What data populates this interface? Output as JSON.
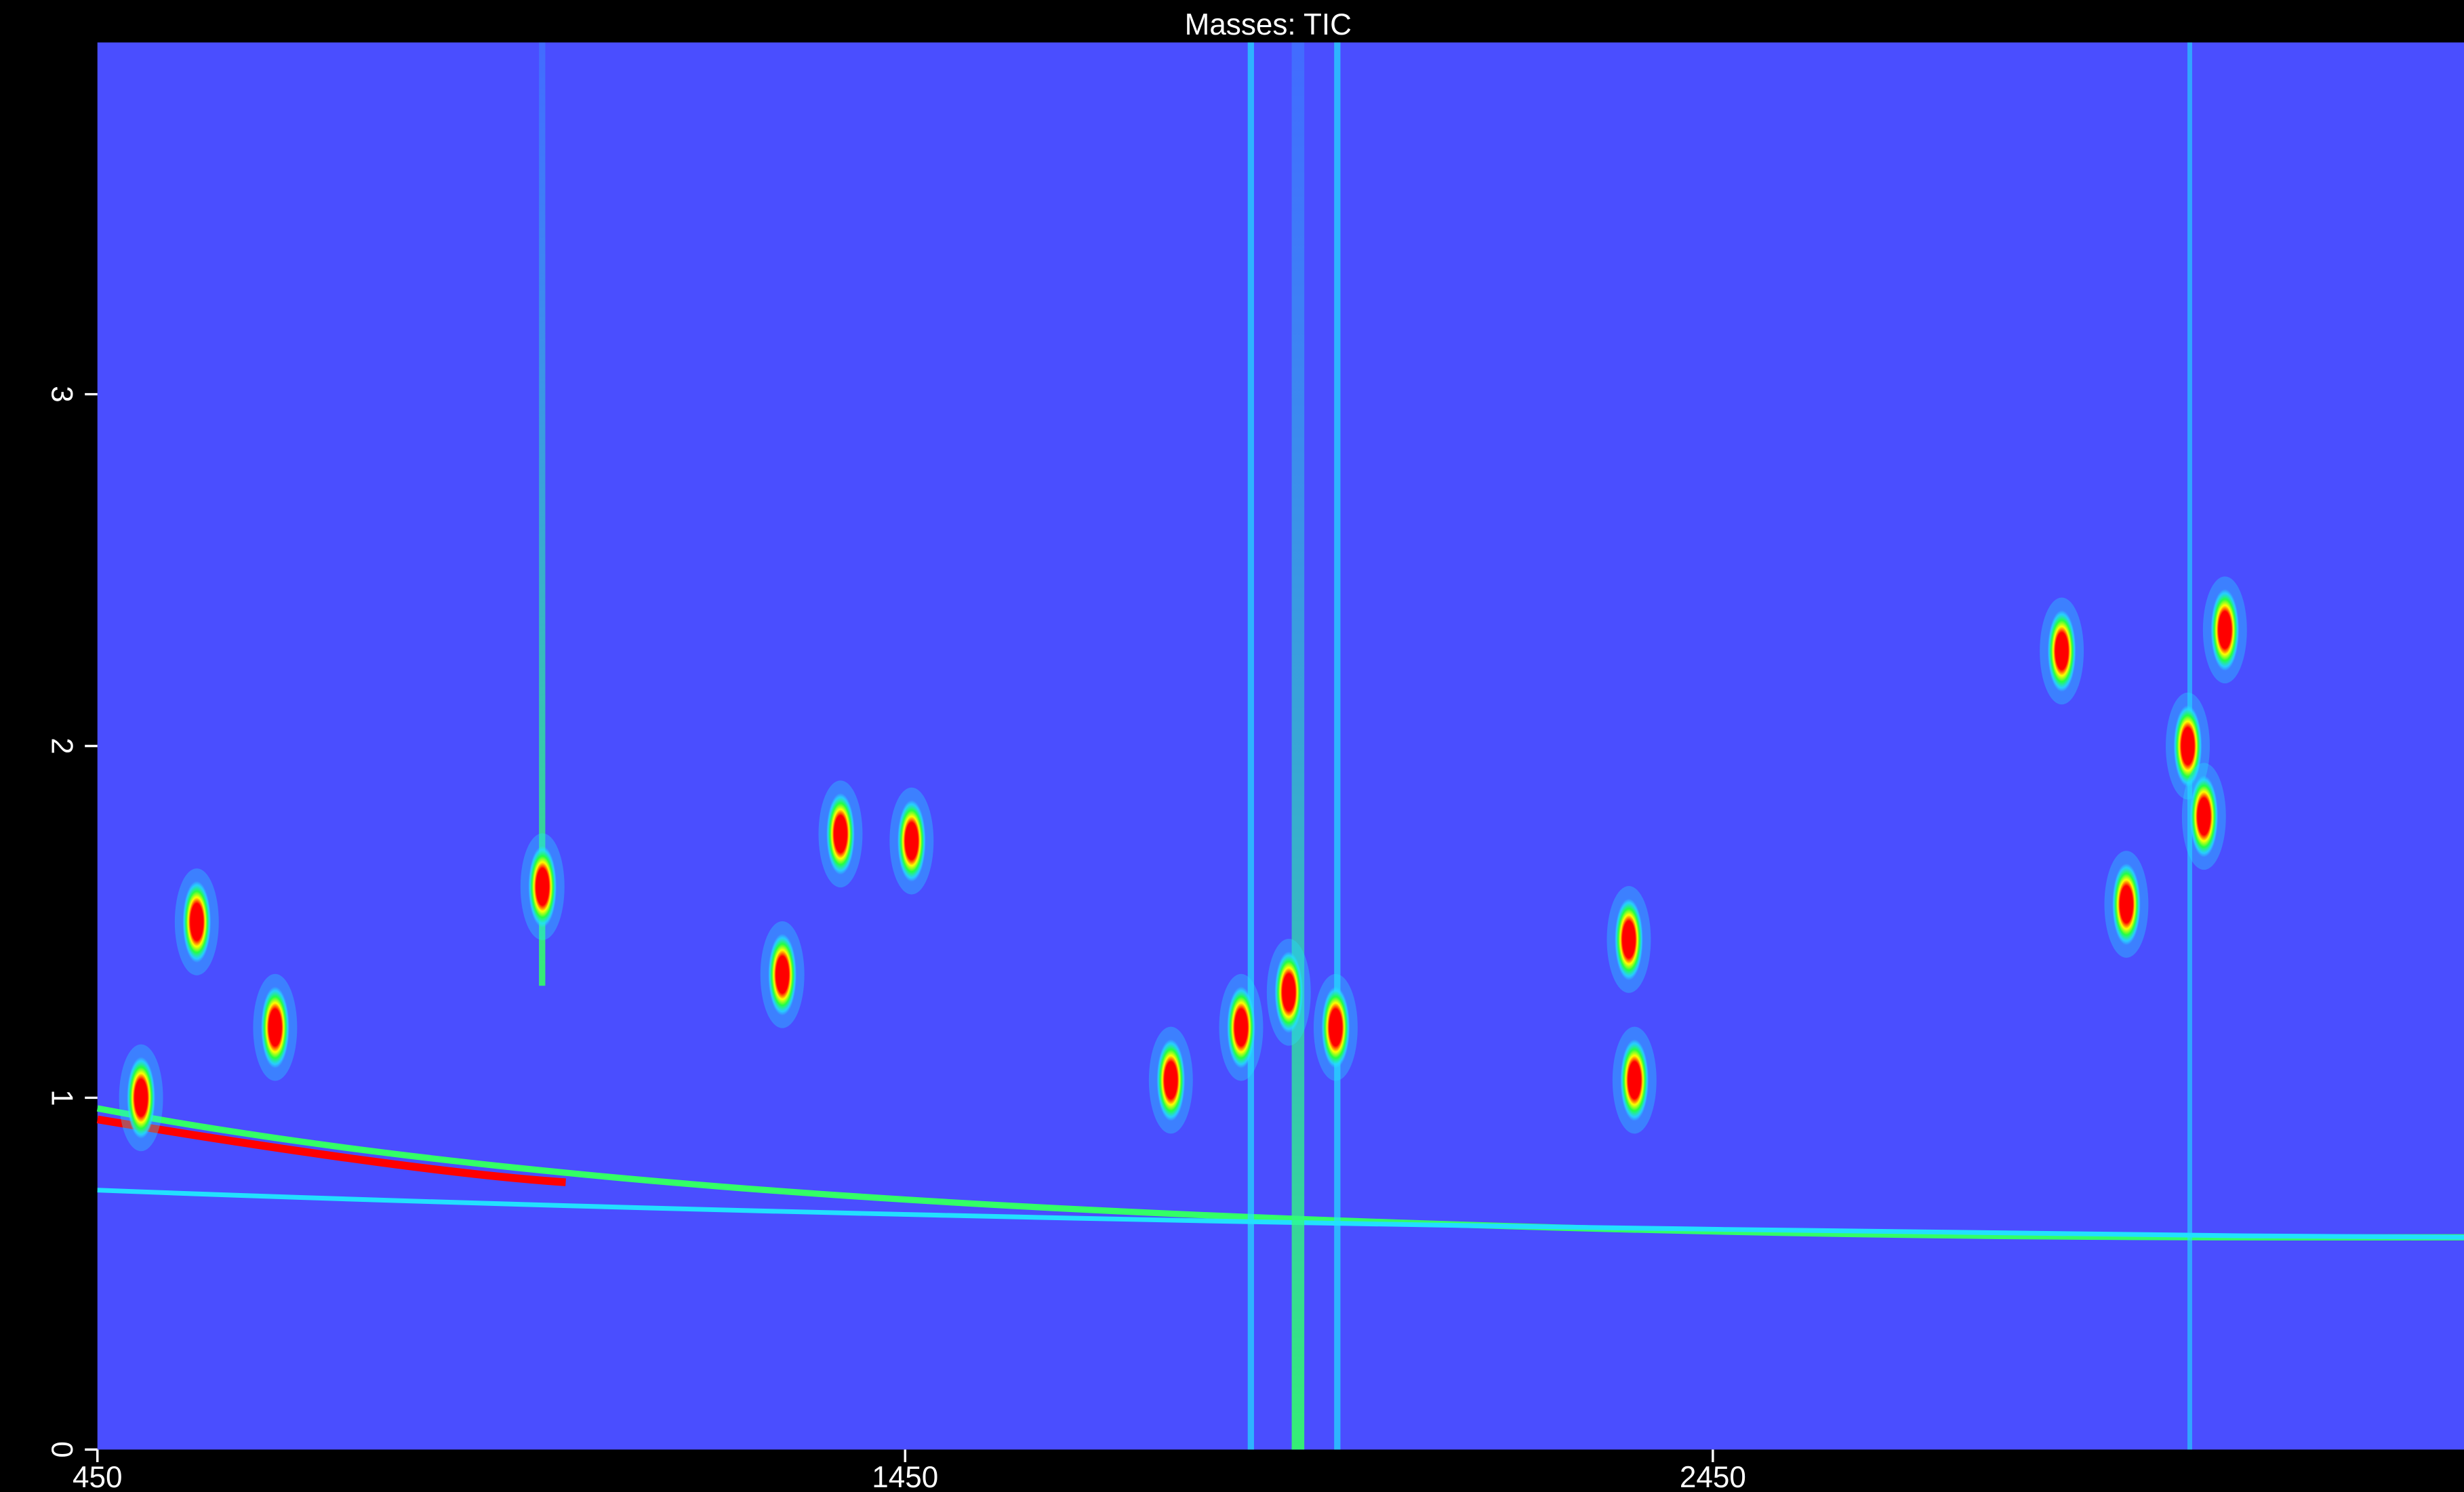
{
  "chart_data": {
    "type": "contour",
    "title": "Masses: TIC",
    "x": [
      504,
      573,
      670,
      1001,
      1298,
      1370,
      1458,
      1779,
      1866,
      1925,
      1983,
      2346,
      2353,
      2882,
      2962,
      3038,
      3058,
      3084
    ],
    "y": [
      1.0,
      1.5,
      1.2,
      1.6,
      1.35,
      1.75,
      1.73,
      1.05,
      1.2,
      1.3,
      1.2,
      1.45,
      1.05,
      2.27,
      1.55,
      2.0,
      1.8,
      2.33
    ],
    "xlim": [
      450,
      3380
    ],
    "ylim": [
      0,
      4
    ],
    "xticks": [
      450,
      1450,
      2450
    ],
    "yticks": [
      0,
      1,
      2,
      3
    ],
    "background": "#4a4eff"
  }
}
